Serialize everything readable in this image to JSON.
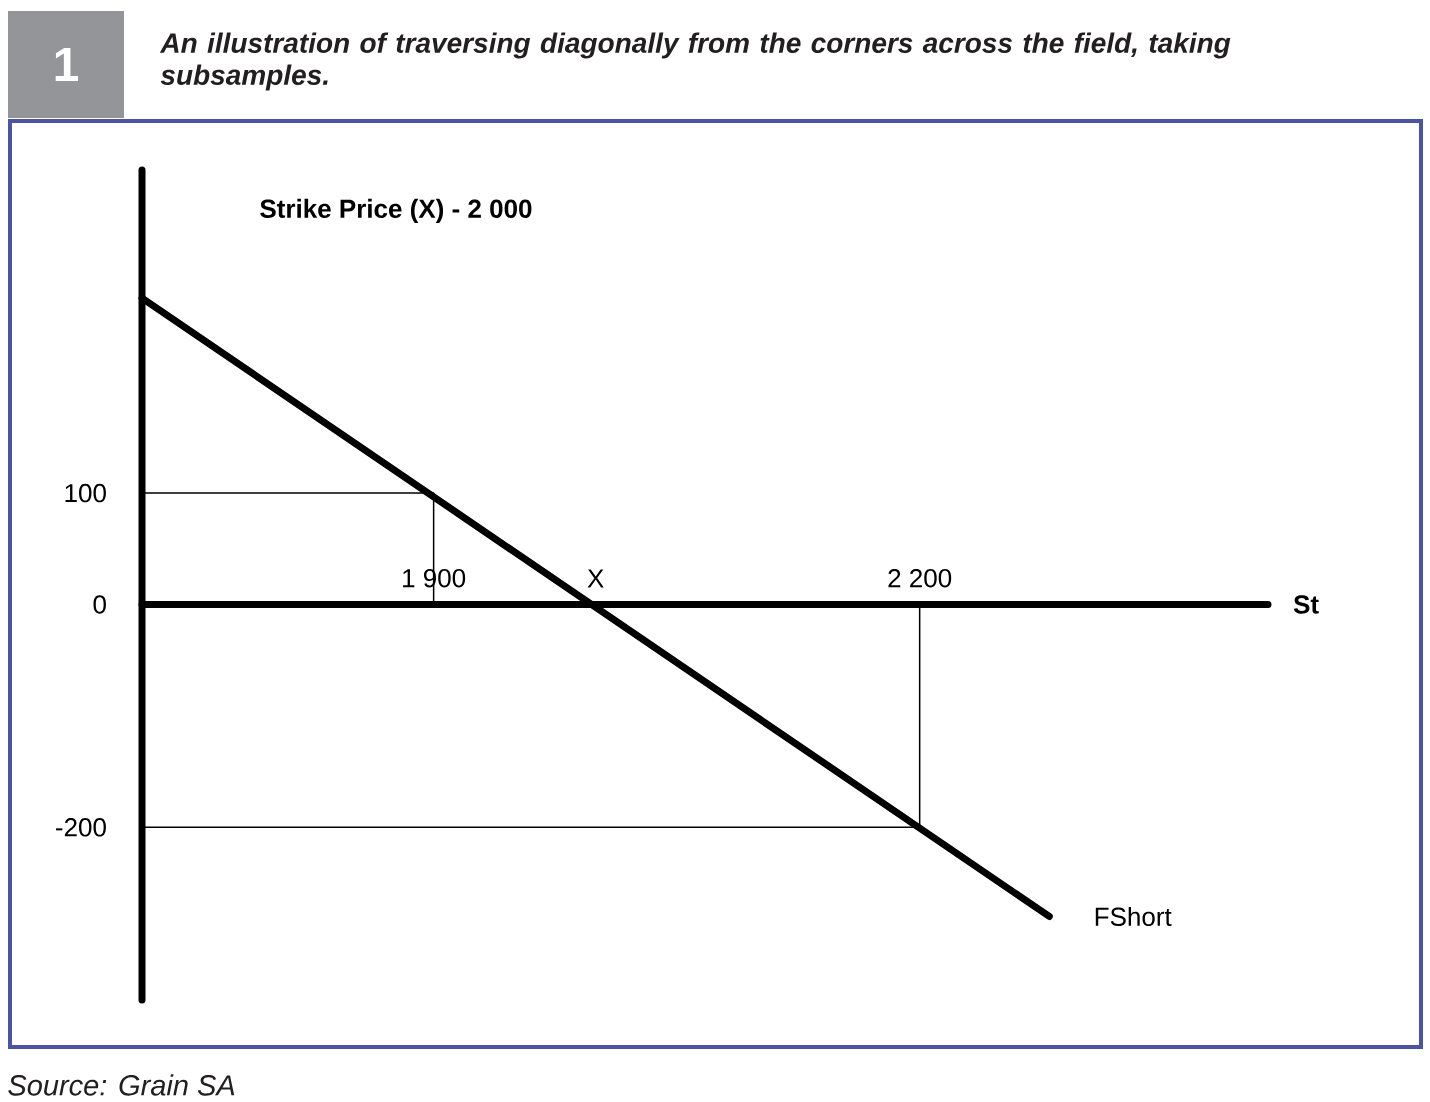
{
  "chart_data": {
    "type": "line",
    "title": "An illustration of traversing diagonally from the corners across the field, taking subsamples.",
    "xlabel": "St",
    "annotations": [
      "1",
      "Strike Price (X) - 2 000",
      "Source: Grain SA"
    ],
    "series": [
      {
        "name": "FShort",
        "color": "#000000",
        "x": [
          1720,
          2280
        ],
        "values": [
          275,
          -280
        ]
      },
      {
        "color": "#000000",
        "x": [
          1720,
          1900,
          1900
        ],
        "values": [
          100,
          100,
          0
        ]
      },
      {
        "color": "#000000",
        "x": [
          1720,
          2200,
          2200
        ],
        "values": [
          -200,
          -200,
          0
        ]
      }
    ],
    "xlim": [
      1720,
      2415
    ],
    "ylim": [
      -355,
      390
    ],
    "xticks": [
      {
        "value": 1900,
        "label": "1 900"
      },
      {
        "value": 2000,
        "label": "X"
      },
      {
        "value": 2200,
        "label": "2 200"
      }
    ],
    "yticks": [
      -200,
      0,
      100
    ],
    "marker": "none",
    "line_style": "solid"
  }
}
